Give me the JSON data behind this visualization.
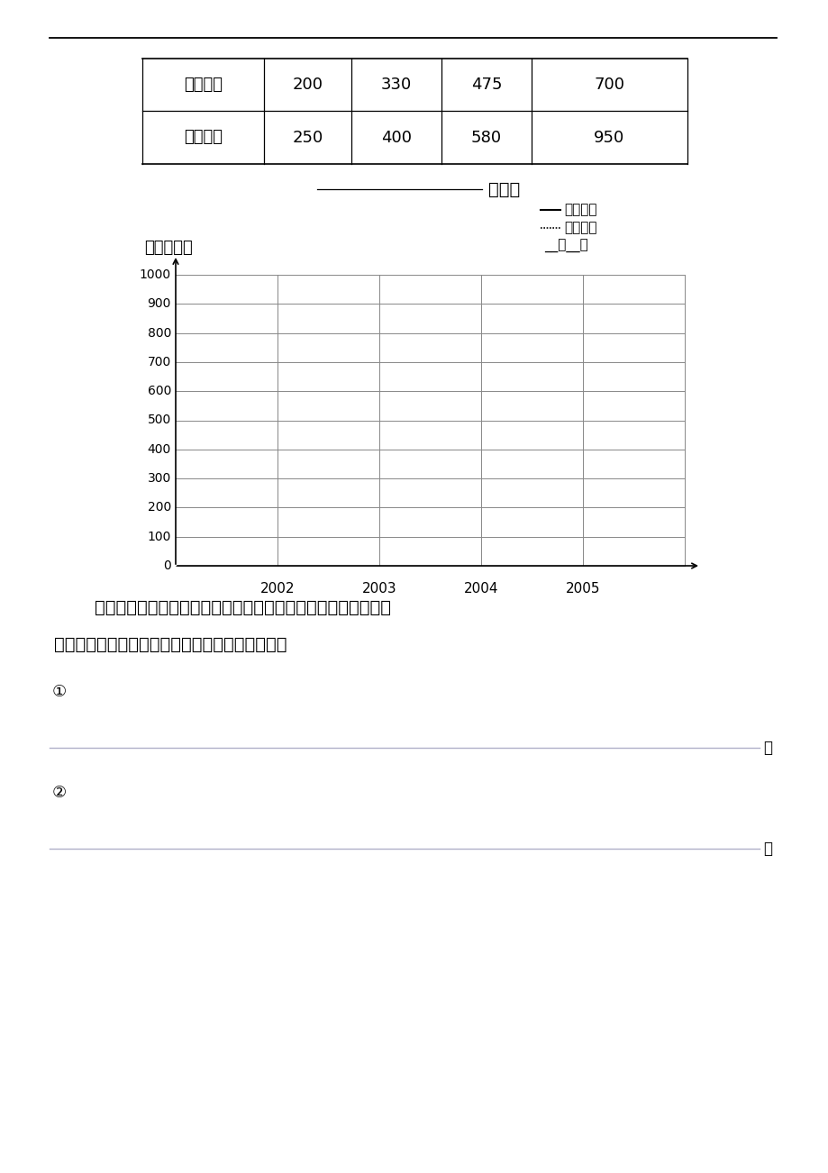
{
  "bg_color": "#ffffff",
  "table": {
    "row1_label": "农业收入",
    "row1_values": [
      200,
      330,
      475,
      700
    ],
    "row2_label": "工业收入",
    "row2_values": [
      250,
      400,
      580,
      950
    ]
  },
  "chart_title_suffix": "统计图",
  "unit_label": "单位：万元",
  "legend_agri": "农业收入",
  "legend_ind": "工业收入",
  "legend_date": "__月__日",
  "axis_years": [
    "2002",
    "2003",
    "2004",
    "2005"
  ],
  "yticks": [
    0,
    100,
    200,
    300,
    400,
    500,
    600,
    700,
    800,
    900,
    1000
  ],
  "para1": "    根据上面统计图表的具体情况，运用百分数的知识，你能提出哪",
  "para2": "些数学问题？想出两个写在下面的横线上并解答。",
  "item1": "①",
  "item2": "②",
  "period": "。",
  "line_color": "#b0b0c8",
  "grid_color": "#888888"
}
